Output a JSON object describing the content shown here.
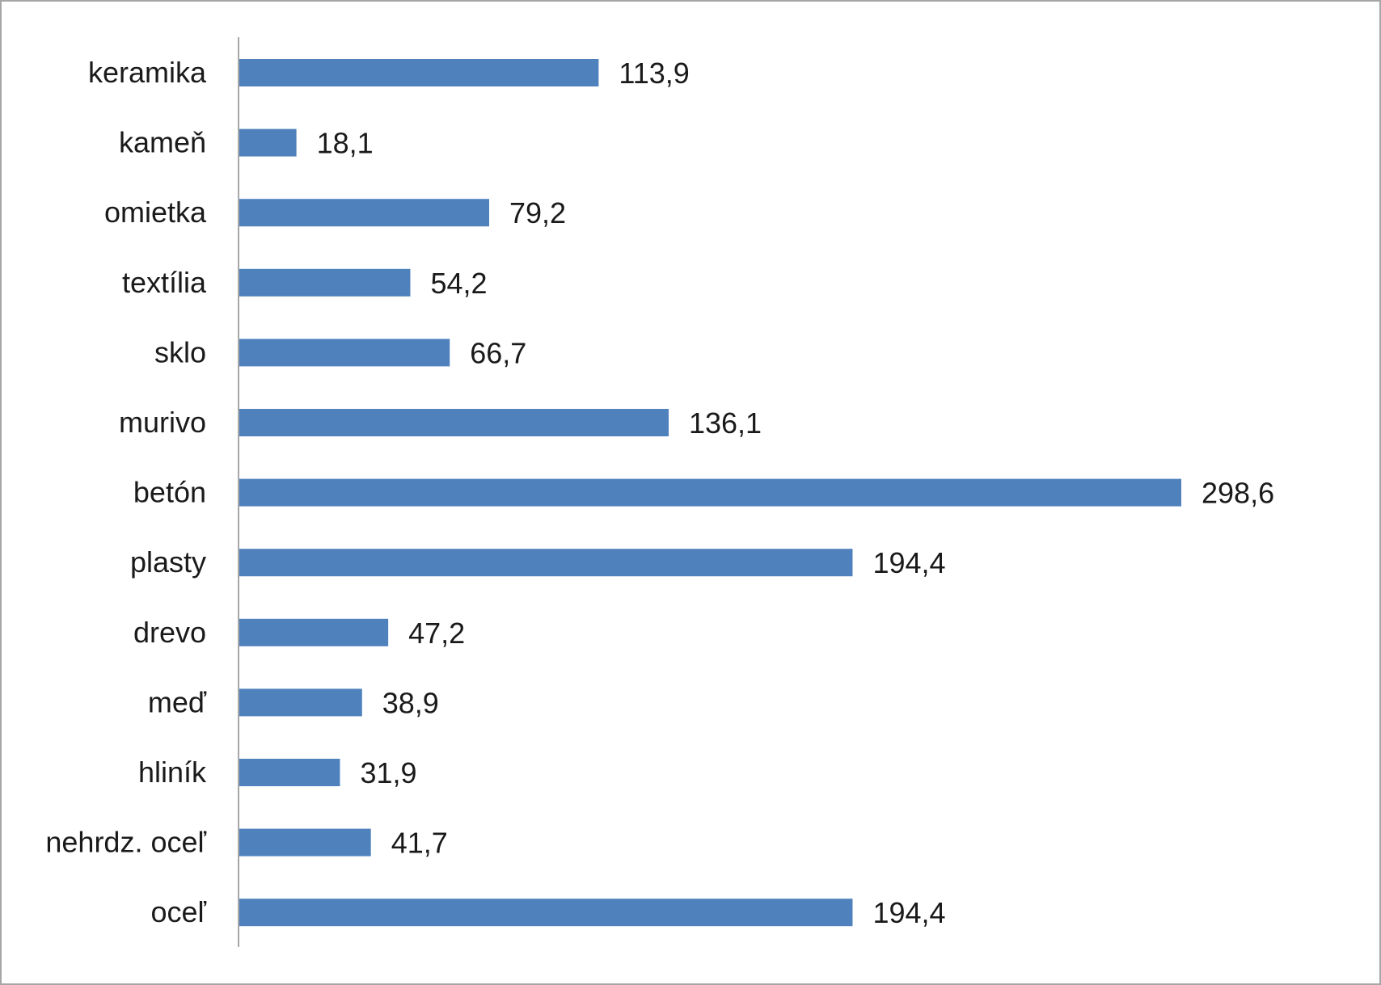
{
  "chart_data": {
    "type": "bar",
    "orientation": "horizontal",
    "categories": [
      "keramika",
      "kameň",
      "omietka",
      "textília",
      "sklo",
      "murivo",
      "betón",
      "plasty",
      "drevo",
      "meď",
      "hliník",
      "nehrdz. oceľ",
      "oceľ"
    ],
    "value_labels": [
      "113,9",
      "18,1",
      "79,2",
      "54,2",
      "66,7",
      "136,1",
      "298,6",
      "194,4",
      "47,2",
      "38,9",
      "31,9",
      "41,7",
      "194,4"
    ],
    "values": [
      113.9,
      18.1,
      79.2,
      54.2,
      66.7,
      136.1,
      298.6,
      194.4,
      47.2,
      38.9,
      31.9,
      41.7,
      194.4
    ],
    "xlim": [
      0,
      298.6
    ],
    "grid": false,
    "legend": "none",
    "bar_color": "#4f81bd",
    "axis_color": "#a6a6a6",
    "border_color": "#a6a6a6"
  }
}
